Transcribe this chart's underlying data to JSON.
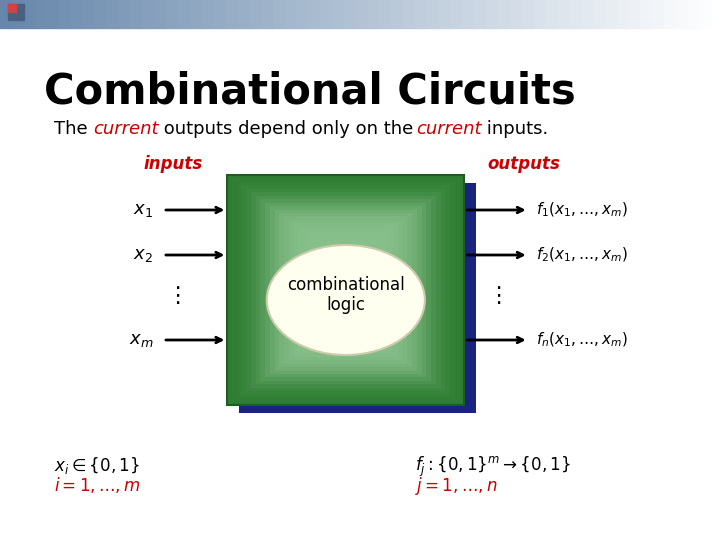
{
  "title": "Combinational Circuits",
  "subtitle_parts": [
    "The ",
    "current",
    " outputs depend only on the ",
    "current",
    " inputs."
  ],
  "inputs_label": "inputs",
  "outputs_label": "outputs",
  "combinational_text": "combinational\nlogic",
  "input_labels": [
    "$x_1$",
    "$x_2$",
    "$x_m$"
  ],
  "output_labels": [
    "$f_1(x_1,\\ldots,x_m)$",
    "$f_2(x_1,\\ldots,x_m)$",
    "$f_n(x_1,\\ldots,x_m)$"
  ],
  "bottom_left_line1": "$x_i \\in \\{0,1\\}$",
  "bottom_left_line2": "$i = 1,\\ldots,m$",
  "bottom_right_line1": "$f_j : \\{0,1\\}^m \\to \\{0,1\\}$",
  "bottom_right_line2": "$j = 1,\\ldots,n$",
  "bg_color": "#ffffff",
  "title_color": "#000000",
  "subtitle_color": "#000000",
  "subtitle_italic_color": "#cc0000",
  "label_color": "#cc0000",
  "box_dark_blue": "#1a237e",
  "box_green": "#2e7d32",
  "box_green_light": "#66bb6a",
  "ellipse_color": "#fffff0",
  "arrow_color": "#000000",
  "header_gradient_left": "#6688aa",
  "header_gradient_right": "#ffffff"
}
